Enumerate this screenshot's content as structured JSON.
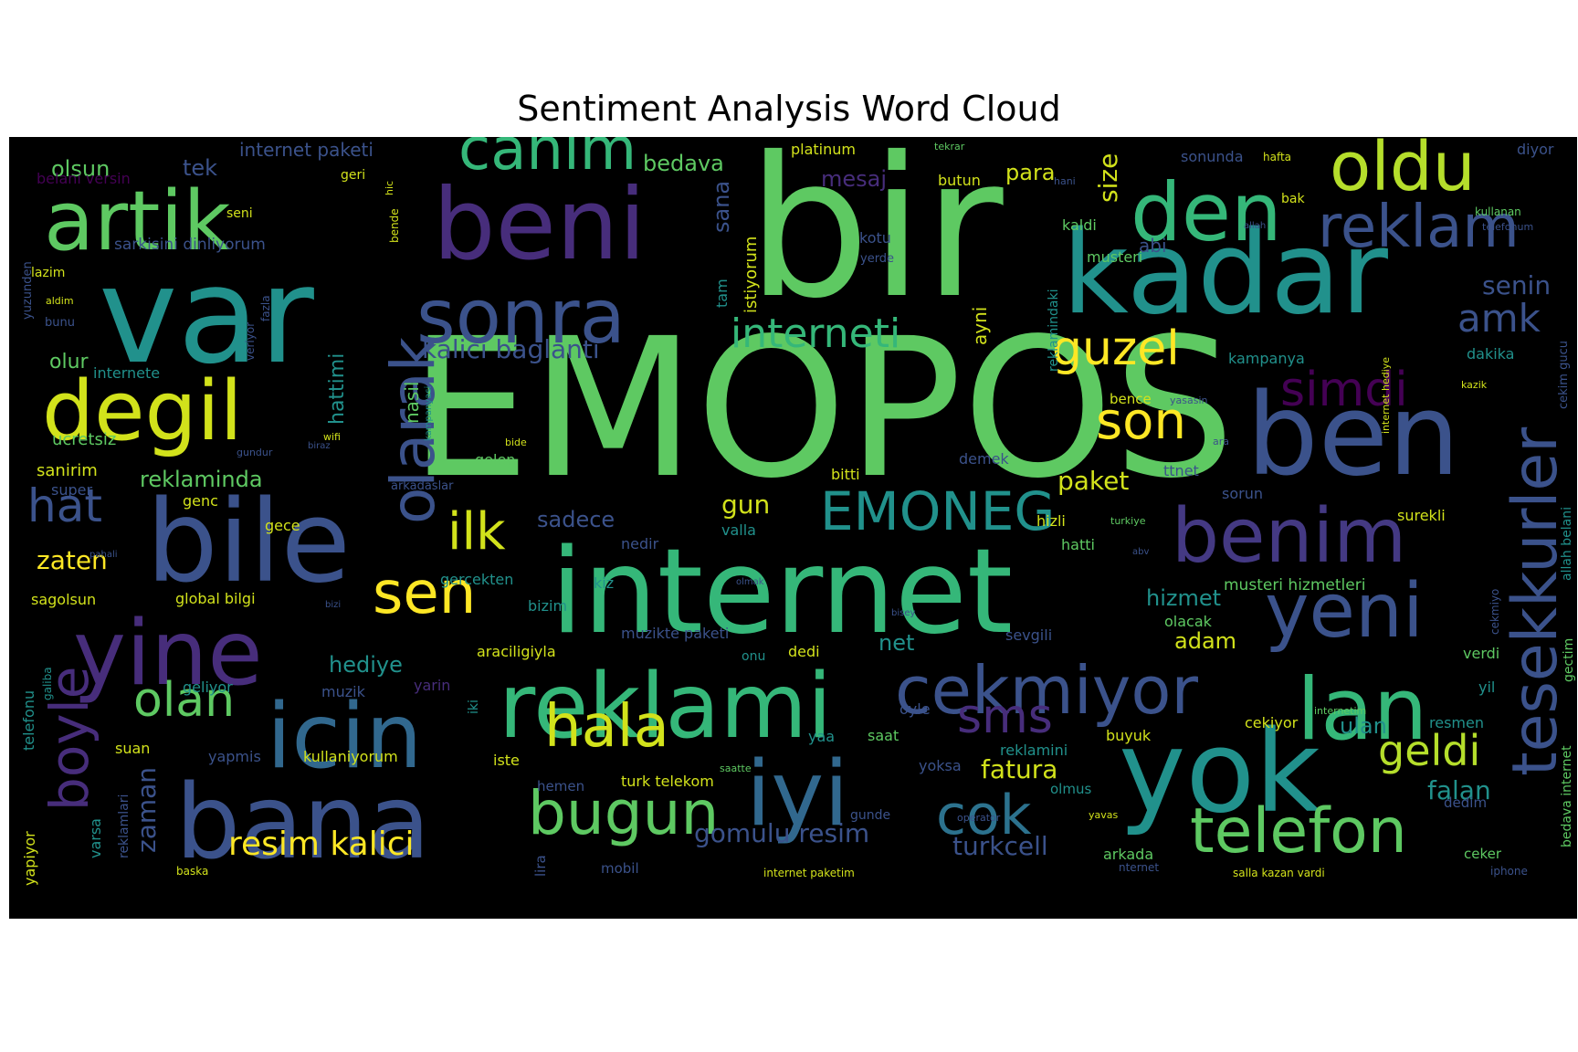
{
  "title": "Sentiment Analysis Word Cloud",
  "background_color": "#000000",
  "words": [
    {
      "text": "EMOPOS",
      "color": "#5ec962"
    },
    {
      "text": "bir",
      "color": "#5ec962"
    },
    {
      "text": "internet",
      "color": "#35b779"
    },
    {
      "text": "kadar",
      "color": "#21918c"
    },
    {
      "text": "var",
      "color": "#21918c"
    },
    {
      "text": "ben",
      "color": "#3b528b"
    },
    {
      "text": "bile",
      "color": "#3b528b"
    },
    {
      "text": "beni",
      "color": "#472d7b"
    },
    {
      "text": "yok",
      "color": "#21918c"
    },
    {
      "text": "bana",
      "color": "#3b528b"
    },
    {
      "text": "artik",
      "color": "#5ec962"
    },
    {
      "text": "reklami",
      "color": "#35b779"
    },
    {
      "text": "degil",
      "color": "#d2e21b"
    },
    {
      "text": "iyi",
      "color": "#31688e"
    },
    {
      "text": "yine",
      "color": "#472d7b"
    },
    {
      "text": "icin",
      "color": "#31688e"
    },
    {
      "text": "den",
      "color": "#35b779"
    },
    {
      "text": "sonra",
      "color": "#3b528b"
    },
    {
      "text": "oldu",
      "color": "#b5de2b"
    },
    {
      "text": "yeni",
      "color": "#3b528b"
    },
    {
      "text": "benim",
      "color": "#443983"
    },
    {
      "text": "lan",
      "color": "#35b779"
    },
    {
      "text": "cekmiyor",
      "color": "#3b528b"
    },
    {
      "text": "canim",
      "color": "#35b779"
    },
    {
      "text": "reklam",
      "color": "#3b528b"
    },
    {
      "text": "telefon",
      "color": "#5ec962"
    },
    {
      "text": "tesekkurler",
      "color": "#3b528b"
    },
    {
      "text": "olarak",
      "color": "#3b528b"
    },
    {
      "text": "boyle",
      "color": "#472d7b"
    },
    {
      "text": "bugun",
      "color": "#5ec962"
    },
    {
      "text": "EMONEG",
      "color": "#21918c"
    },
    {
      "text": "hala",
      "color": "#d2e21b"
    },
    {
      "text": "sen",
      "color": "#fde725"
    },
    {
      "text": "ilk",
      "color": "#d2e21b"
    },
    {
      "text": "son",
      "color": "#fde725"
    },
    {
      "text": "guzel",
      "color": "#fde725"
    },
    {
      "text": "cok",
      "color": "#2c728e"
    },
    {
      "text": "olan",
      "color": "#5ec962"
    },
    {
      "text": "interneti",
      "color": "#35b779"
    },
    {
      "text": "simdi",
      "color": "#440154"
    },
    {
      "text": "hat",
      "color": "#3b528b"
    },
    {
      "text": "sms",
      "color": "#472d7b"
    },
    {
      "text": "geldi",
      "color": "#b5de2b"
    },
    {
      "text": "amk",
      "color": "#3b528b"
    },
    {
      "text": "resim kalici",
      "color": "#fde725"
    },
    {
      "text": "kalici baglanti",
      "color": "#3b528b"
    },
    {
      "text": "gomulu resim",
      "color": "#3b528b"
    },
    {
      "text": "fatura",
      "color": "#d2e21b"
    },
    {
      "text": "senin",
      "color": "#3b528b"
    },
    {
      "text": "turkcell",
      "color": "#3b528b"
    },
    {
      "text": "paket",
      "color": "#d2e21b"
    },
    {
      "text": "falan",
      "color": "#21918c"
    },
    {
      "text": "hizmet",
      "color": "#21918c"
    },
    {
      "text": "zaten",
      "color": "#fde725"
    },
    {
      "text": "zaman",
      "color": "#3b528b"
    },
    {
      "text": "size",
      "color": "#d2e21b"
    },
    {
      "text": "para",
      "color": "#d2e21b"
    },
    {
      "text": "olsun",
      "color": "#5ec962"
    },
    {
      "text": "tek",
      "color": "#3b528b"
    },
    {
      "text": "mesaj",
      "color": "#472d7b"
    },
    {
      "text": "bedava",
      "color": "#5ec962"
    },
    {
      "text": "sana",
      "color": "#3b528b"
    },
    {
      "text": "reklaminda",
      "color": "#5ec962"
    },
    {
      "text": "sadece",
      "color": "#3b528b"
    },
    {
      "text": "gun",
      "color": "#d2e21b"
    },
    {
      "text": "hediye",
      "color": "#21918c"
    },
    {
      "text": "adam",
      "color": "#d2e21b"
    },
    {
      "text": "net",
      "color": "#21918c"
    },
    {
      "text": "ulan",
      "color": "#21918c"
    },
    {
      "text": "hattimi",
      "color": "#21918c"
    },
    {
      "text": "abi",
      "color": "#3b528b"
    },
    {
      "text": "nasil",
      "color": "#5ec962"
    },
    {
      "text": "olur",
      "color": "#5ec962"
    },
    {
      "text": "istiyorum",
      "color": "#d2e21b"
    },
    {
      "text": "internet paketi",
      "color": "#3b528b"
    },
    {
      "text": "sarkisini dinliyorum",
      "color": "#3b528b"
    },
    {
      "text": "musteri hizmetleri",
      "color": "#5ec962"
    },
    {
      "text": "kampanya",
      "color": "#21918c"
    },
    {
      "text": "reklamindaki",
      "color": "#21918c"
    },
    {
      "text": "platinum",
      "color": "#d2e21b"
    },
    {
      "text": "sonunda",
      "color": "#3b528b"
    },
    {
      "text": "diyor",
      "color": "#3b528b"
    },
    {
      "text": "butun",
      "color": "#d2e21b"
    },
    {
      "text": "kaldi",
      "color": "#5ec962"
    },
    {
      "text": "musteri",
      "color": "#5ec962"
    },
    {
      "text": "ayni",
      "color": "#d2e21b"
    },
    {
      "text": "kotu",
      "color": "#3b528b"
    },
    {
      "text": "tam",
      "color": "#21918c"
    },
    {
      "text": "dakika",
      "color": "#21918c"
    },
    {
      "text": "bence",
      "color": "#d2e21b"
    },
    {
      "text": "gelen",
      "color": "#5ec962"
    },
    {
      "text": "bitti",
      "color": "#d2e21b"
    },
    {
      "text": "demek",
      "color": "#3b528b"
    },
    {
      "text": "ttnet",
      "color": "#3b528b"
    },
    {
      "text": "sorun",
      "color": "#3b528b"
    },
    {
      "text": "surekli",
      "color": "#d2e21b"
    },
    {
      "text": "nedir",
      "color": "#3b528b"
    },
    {
      "text": "valla",
      "color": "#21918c"
    },
    {
      "text": "hizli",
      "color": "#d2e21b"
    },
    {
      "text": "hatti",
      "color": "#5ec962"
    },
    {
      "text": "ucretsiz",
      "color": "#5ec962"
    },
    {
      "text": "sanirim",
      "color": "#d2e21b"
    },
    {
      "text": "super",
      "color": "#3b528b"
    },
    {
      "text": "genc",
      "color": "#d2e21b"
    },
    {
      "text": "gece",
      "color": "#d2e21b"
    },
    {
      "text": "global bilgi",
      "color": "#d2e21b"
    },
    {
      "text": "sagolsun",
      "color": "#d2e21b"
    },
    {
      "text": "gercekten",
      "color": "#21918c"
    },
    {
      "text": "bizim",
      "color": "#21918c"
    },
    {
      "text": "kiz",
      "color": "#21918c"
    },
    {
      "text": "muzikte paketi",
      "color": "#3b528b"
    },
    {
      "text": "araciligiyla",
      "color": "#d2e21b"
    },
    {
      "text": "dedi",
      "color": "#d2e21b"
    },
    {
      "text": "onu",
      "color": "#21918c"
    },
    {
      "text": "sevgili",
      "color": "#3b528b"
    },
    {
      "text": "olacak",
      "color": "#5ec962"
    },
    {
      "text": "verdi",
      "color": "#5ec962"
    },
    {
      "text": "yil",
      "color": "#21918c"
    },
    {
      "text": "cekiyor",
      "color": "#d2e21b"
    },
    {
      "text": "resmen",
      "color": "#21918c"
    },
    {
      "text": "buyuk",
      "color": "#d2e21b"
    },
    {
      "text": "saat",
      "color": "#5ec962"
    },
    {
      "text": "yaa",
      "color": "#21918c"
    },
    {
      "text": "oyle",
      "color": "#3b528b"
    },
    {
      "text": "geliyor",
      "color": "#21918c"
    },
    {
      "text": "muzik",
      "color": "#3b528b"
    },
    {
      "text": "yarin",
      "color": "#472d7b"
    },
    {
      "text": "suan",
      "color": "#d2e21b"
    },
    {
      "text": "yapmis",
      "color": "#3b528b"
    },
    {
      "text": "kullaniyorum",
      "color": "#d2e21b"
    },
    {
      "text": "iste",
      "color": "#d2e21b"
    },
    {
      "text": "hemen",
      "color": "#3b528b"
    },
    {
      "text": "turk telekom",
      "color": "#d2e21b"
    },
    {
      "text": "yoksa",
      "color": "#3b528b"
    },
    {
      "text": "reklamini",
      "color": "#21918c"
    },
    {
      "text": "olmus",
      "color": "#21918c"
    },
    {
      "text": "dedim",
      "color": "#3b528b"
    },
    {
      "text": "arkada",
      "color": "#5ec962"
    },
    {
      "text": "ceker",
      "color": "#5ec962"
    },
    {
      "text": "mobil",
      "color": "#3b528b"
    },
    {
      "text": "gunde",
      "color": "#3b528b"
    },
    {
      "text": "lira",
      "color": "#3b528b"
    },
    {
      "text": "baska",
      "color": "#d2e21b"
    },
    {
      "text": "internet paketim",
      "color": "#d2e21b"
    },
    {
      "text": "salla kazan vardi",
      "color": "#d2e21b"
    },
    {
      "text": "iphone",
      "color": "#3b528b"
    },
    {
      "text": "nternet",
      "color": "#3b528b"
    },
    {
      "text": "seni",
      "color": "#d2e21b"
    },
    {
      "text": "geri",
      "color": "#d2e21b"
    },
    {
      "text": "belani versin",
      "color": "#440154"
    },
    {
      "text": "lazim",
      "color": "#d2e21b"
    },
    {
      "text": "aldim",
      "color": "#d2e21b"
    },
    {
      "text": "bunu",
      "color": "#3b528b"
    },
    {
      "text": "yuzunden",
      "color": "#3b528b"
    },
    {
      "text": "bende",
      "color": "#d2e21b"
    },
    {
      "text": "hic",
      "color": "#d2e21b"
    },
    {
      "text": "fazla",
      "color": "#3b528b"
    },
    {
      "text": "veriyor",
      "color": "#3b528b"
    },
    {
      "text": "wifi",
      "color": "#d2e21b"
    },
    {
      "text": "kampanyasi",
      "color": "#21918c"
    },
    {
      "text": "gundur",
      "color": "#3b528b"
    },
    {
      "text": "biraz",
      "color": "#3b528b"
    },
    {
      "text": "arkadaslar",
      "color": "#3b528b"
    },
    {
      "text": "bide",
      "color": "#d2e21b"
    },
    {
      "text": "yasasin",
      "color": "#3b528b"
    },
    {
      "text": "tekrar",
      "color": "#5ec962"
    },
    {
      "text": "hafta",
      "color": "#d2e21b"
    },
    {
      "text": "bak",
      "color": "#d2e21b"
    },
    {
      "text": "hani",
      "color": "#3b528b"
    },
    {
      "text": "allah",
      "color": "#3b528b"
    },
    {
      "text": "yerde",
      "color": "#3b528b"
    },
    {
      "text": "kullanan",
      "color": "#5ec962"
    },
    {
      "text": "telefonum",
      "color": "#3b528b"
    },
    {
      "text": "internet hediye",
      "color": "#d2e21b"
    },
    {
      "text": "cekim gucu",
      "color": "#3b528b"
    },
    {
      "text": "kazik",
      "color": "#d2e21b"
    },
    {
      "text": "allah belani",
      "color": "#21918c"
    },
    {
      "text": "bedava internet",
      "color": "#5ec962"
    },
    {
      "text": "gectim",
      "color": "#5ec962"
    },
    {
      "text": "cekmiyo",
      "color": "#3b528b"
    },
    {
      "text": "internetim",
      "color": "#5ec962"
    },
    {
      "text": "saatte",
      "color": "#5ec962"
    },
    {
      "text": "operator",
      "color": "#3b528b"
    },
    {
      "text": "yavas",
      "color": "#d2e21b"
    },
    {
      "text": "turkiye",
      "color": "#5ec962"
    },
    {
      "text": "abv",
      "color": "#3b528b"
    },
    {
      "text": "olmak",
      "color": "#3b528b"
    },
    {
      "text": "bisey",
      "color": "#3b528b"
    },
    {
      "text": "bizi",
      "color": "#3b528b"
    },
    {
      "text": "pahali",
      "color": "#3b528b"
    },
    {
      "text": "internete",
      "color": "#21918c"
    },
    {
      "text": "telefonu",
      "color": "#21918c"
    },
    {
      "text": "galiba",
      "color": "#21918c"
    },
    {
      "text": "iki",
      "color": "#21918c"
    },
    {
      "text": "yapiyor",
      "color": "#d2e21b"
    },
    {
      "text": "varsa",
      "color": "#21918c"
    },
    {
      "text": "reklamlari",
      "color": "#3b528b"
    },
    {
      "text": "ara",
      "color": "#3b528b"
    }
  ]
}
